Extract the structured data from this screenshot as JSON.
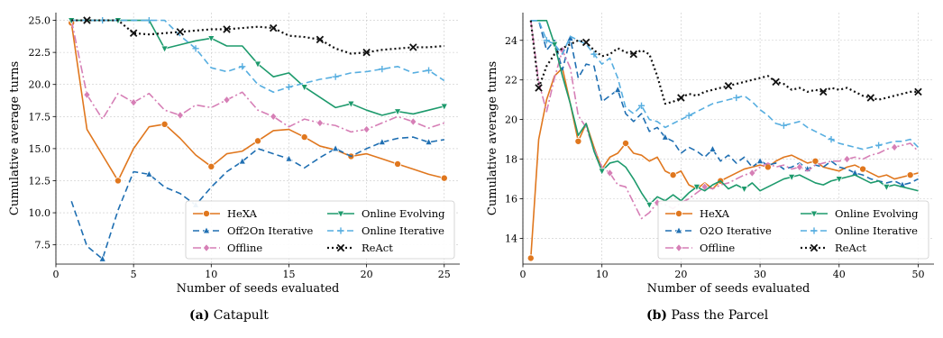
{
  "chart_data": [
    {
      "type": "line",
      "caption_label": "(a)",
      "caption_text": "Catapult",
      "xlabel": "Number of seeds evaluated",
      "ylabel": "Cumulative average turns",
      "xlim": [
        0,
        26
      ],
      "ylim": [
        6.0,
        25.6
      ],
      "xticks": [
        0,
        5,
        10,
        15,
        20,
        25
      ],
      "yticks": [
        7.5,
        10.0,
        12.5,
        15.0,
        17.5,
        20.0,
        22.5,
        25.0
      ],
      "ytick_decimals": 1,
      "grid": true,
      "legend_position": "lower-right",
      "series": [
        {
          "name": "HeXA",
          "color": "#e0771e",
          "dash": "",
          "marker": "circle",
          "marker_every": 3,
          "x": [
            1,
            2,
            3,
            4,
            5,
            6,
            7,
            8,
            9,
            10,
            11,
            12,
            13,
            14,
            15,
            16,
            17,
            18,
            19,
            20,
            21,
            22,
            23,
            24,
            25
          ],
          "y": [
            24.8,
            16.5,
            14.5,
            12.5,
            15.0,
            16.7,
            16.9,
            15.8,
            14.5,
            13.6,
            14.6,
            14.8,
            15.6,
            16.4,
            16.5,
            15.9,
            15.2,
            14.9,
            14.4,
            14.6,
            14.2,
            13.8,
            13.4,
            13.0,
            12.7
          ]
        },
        {
          "name": "Off2On Iterative",
          "color": "#1f6fb2",
          "dash": "7,4",
          "marker": "triangle-up",
          "marker_every": 3,
          "x": [
            1,
            2,
            3,
            4,
            5,
            6,
            7,
            8,
            9,
            10,
            11,
            12,
            13,
            14,
            15,
            16,
            17,
            18,
            19,
            20,
            21,
            22,
            23,
            24,
            25
          ],
          "y": [
            10.9,
            7.4,
            6.4,
            10.2,
            13.2,
            13.0,
            12.0,
            11.5,
            10.6,
            12.0,
            13.2,
            14.0,
            15.0,
            14.6,
            14.2,
            13.5,
            14.3,
            15.0,
            14.4,
            15.0,
            15.5,
            15.8,
            15.9,
            15.5,
            15.7
          ]
        },
        {
          "name": "Offline",
          "color": "#d67fb6",
          "dash": "9,3,2,3",
          "marker": "diamond",
          "marker_every": 3,
          "x": [
            1,
            2,
            3,
            4,
            5,
            6,
            7,
            8,
            9,
            10,
            11,
            12,
            13,
            14,
            15,
            16,
            17,
            18,
            19,
            20,
            21,
            22,
            23,
            24,
            25
          ],
          "y": [
            25.0,
            19.2,
            17.3,
            19.3,
            18.6,
            19.3,
            18.0,
            17.6,
            18.4,
            18.2,
            18.8,
            19.4,
            18.0,
            17.5,
            16.7,
            17.3,
            17.0,
            16.8,
            16.3,
            16.5,
            17.0,
            17.5,
            17.1,
            16.6,
            17.0
          ]
        },
        {
          "name": "Online Evolving",
          "color": "#1d9a6c",
          "dash": "",
          "marker": "triangle-down",
          "marker_every": 3,
          "x": [
            1,
            2,
            3,
            4,
            5,
            6,
            7,
            8,
            9,
            10,
            11,
            12,
            13,
            14,
            15,
            16,
            17,
            18,
            19,
            20,
            21,
            22,
            23,
            24,
            25
          ],
          "y": [
            25.0,
            25.0,
            25.0,
            25.0,
            25.0,
            25.0,
            22.8,
            23.1,
            23.4,
            23.6,
            23.0,
            23.0,
            21.6,
            20.6,
            20.9,
            19.8,
            19.0,
            18.2,
            18.5,
            18.0,
            17.6,
            17.9,
            17.7,
            18.0,
            18.3
          ]
        },
        {
          "name": "Online Iterative",
          "color": "#57aee0",
          "dash": "7,4",
          "marker": "plus",
          "marker_every": 3,
          "x": [
            1,
            2,
            3,
            4,
            5,
            6,
            7,
            8,
            9,
            10,
            11,
            12,
            13,
            14,
            15,
            16,
            17,
            18,
            19,
            20,
            21,
            22,
            23,
            24,
            25
          ],
          "y": [
            25.0,
            25.0,
            25.0,
            25.0,
            25.0,
            25.0,
            25.0,
            23.8,
            22.8,
            21.3,
            21.0,
            21.4,
            20.0,
            19.4,
            19.8,
            20.1,
            20.4,
            20.6,
            20.9,
            21.0,
            21.2,
            21.4,
            20.9,
            21.1,
            20.3
          ]
        },
        {
          "name": "ReAct",
          "color": "#111111",
          "dash": "2,3",
          "marker": "x",
          "marker_every": 3,
          "x": [
            1,
            2,
            3,
            4,
            5,
            6,
            7,
            8,
            9,
            10,
            11,
            12,
            13,
            14,
            15,
            16,
            17,
            18,
            19,
            20,
            21,
            22,
            23,
            24,
            25
          ],
          "y": [
            25.0,
            25.0,
            25.0,
            25.0,
            24.0,
            23.9,
            24.0,
            24.1,
            24.2,
            24.3,
            24.3,
            24.4,
            24.5,
            24.4,
            23.8,
            23.7,
            23.5,
            22.8,
            22.4,
            22.5,
            22.7,
            22.8,
            22.9,
            22.9,
            23.0
          ]
        }
      ],
      "legend": [
        {
          "name": "HeXA"
        },
        {
          "name": "Online Evolving"
        },
        {
          "name": "Off2On Iterative"
        },
        {
          "name": "Online Iterative"
        },
        {
          "name": "Offline"
        },
        {
          "name": "ReAct"
        }
      ]
    },
    {
      "type": "line",
      "caption_label": "(b)",
      "caption_text": "Pass the Parcel",
      "xlabel": "Number of seeds evaluated",
      "ylabel": "Cumulative average turns",
      "xlim": [
        0,
        52
      ],
      "ylim": [
        12.7,
        25.4
      ],
      "xticks": [
        0,
        10,
        20,
        30,
        40,
        50
      ],
      "yticks": [
        14,
        16,
        18,
        20,
        22,
        24
      ],
      "ytick_decimals": 0,
      "grid": true,
      "legend_position": "lower-right",
      "series": [
        {
          "name": "HeXA",
          "color": "#e0771e",
          "dash": "",
          "marker": "circle",
          "marker_every": 6,
          "x": [
            1,
            2,
            3,
            4,
            5,
            6,
            7,
            8,
            9,
            10,
            11,
            12,
            13,
            14,
            15,
            16,
            17,
            18,
            19,
            20,
            21,
            22,
            23,
            24,
            25,
            26,
            27,
            28,
            29,
            30,
            31,
            32,
            33,
            34,
            35,
            36,
            37,
            38,
            39,
            40,
            41,
            42,
            43,
            44,
            45,
            46,
            47,
            48,
            49,
            50
          ],
          "y": [
            13.0,
            19.0,
            21.0,
            22.2,
            22.6,
            20.8,
            18.9,
            19.8,
            18.6,
            17.5,
            18.1,
            18.3,
            18.8,
            18.3,
            18.2,
            17.9,
            18.1,
            17.4,
            17.2,
            17.4,
            16.7,
            16.5,
            16.8,
            16.5,
            16.9,
            17.1,
            17.3,
            17.5,
            17.6,
            17.7,
            17.6,
            17.9,
            18.1,
            18.2,
            18.0,
            17.8,
            17.9,
            17.6,
            17.5,
            17.4,
            17.6,
            17.7,
            17.5,
            17.3,
            17.1,
            17.2,
            17.0,
            17.1,
            17.2,
            17.3
          ]
        },
        {
          "name": "O2O Iterative",
          "color": "#1f6fb2",
          "dash": "7,4",
          "marker": "triangle-up",
          "marker_every": 6,
          "x": [
            1,
            2,
            3,
            4,
            5,
            6,
            7,
            8,
            9,
            10,
            11,
            12,
            13,
            14,
            15,
            16,
            17,
            18,
            19,
            20,
            21,
            22,
            23,
            24,
            25,
            26,
            27,
            28,
            29,
            30,
            31,
            32,
            33,
            34,
            35,
            36,
            37,
            38,
            39,
            40,
            41,
            42,
            43,
            44,
            45,
            46,
            47,
            48,
            49,
            50
          ],
          "y": [
            25.0,
            25.0,
            23.5,
            24.0,
            22.5,
            24.1,
            22.1,
            22.8,
            22.7,
            20.9,
            21.2,
            21.5,
            20.3,
            19.9,
            20.3,
            19.4,
            19.6,
            19.1,
            18.9,
            18.3,
            18.6,
            18.4,
            18.1,
            18.5,
            17.9,
            18.2,
            17.8,
            18.1,
            17.6,
            17.9,
            17.7,
            17.8,
            17.5,
            17.6,
            17.8,
            17.5,
            17.7,
            17.6,
            17.9,
            17.6,
            17.5,
            17.3,
            17.2,
            17.0,
            16.9,
            16.8,
            16.9,
            16.7,
            16.8,
            17.0
          ]
        },
        {
          "name": "Offline",
          "color": "#d67fb6",
          "dash": "9,3,2,3",
          "marker": "diamond",
          "marker_every": 6,
          "x": [
            1,
            2,
            3,
            4,
            5,
            6,
            7,
            8,
            9,
            10,
            11,
            12,
            13,
            14,
            15,
            16,
            17,
            18,
            19,
            20,
            21,
            22,
            23,
            24,
            25,
            26,
            27,
            28,
            29,
            30,
            31,
            32,
            33,
            34,
            35,
            36,
            37,
            38,
            39,
            40,
            41,
            42,
            43,
            44,
            45,
            46,
            47,
            48,
            49,
            50
          ],
          "y": [
            25.0,
            21.9,
            20.4,
            22.1,
            23.5,
            22.6,
            20.2,
            19.6,
            18.5,
            17.6,
            17.3,
            16.7,
            16.6,
            15.8,
            15.0,
            15.3,
            15.8,
            15.7,
            15.5,
            15.8,
            16.0,
            16.3,
            16.6,
            16.5,
            16.7,
            16.8,
            17.0,
            17.2,
            17.3,
            17.6,
            17.8,
            17.6,
            17.7,
            17.5,
            17.6,
            17.4,
            17.7,
            17.8,
            17.9,
            17.9,
            18.0,
            18.1,
            18.0,
            18.2,
            18.3,
            18.5,
            18.6,
            18.7,
            18.8,
            18.4
          ]
        },
        {
          "name": "Online Evolving",
          "color": "#1d9a6c",
          "dash": "",
          "marker": "triangle-down",
          "marker_every": 6,
          "x": [
            1,
            2,
            3,
            4,
            5,
            6,
            7,
            8,
            9,
            10,
            11,
            12,
            13,
            14,
            15,
            16,
            17,
            18,
            19,
            20,
            21,
            22,
            23,
            24,
            25,
            26,
            27,
            28,
            29,
            30,
            31,
            32,
            33,
            34,
            35,
            36,
            37,
            38,
            39,
            40,
            41,
            42,
            43,
            44,
            45,
            46,
            47,
            48,
            49,
            50
          ],
          "y": [
            25.0,
            25.0,
            25.0,
            23.8,
            22.2,
            20.8,
            19.2,
            19.8,
            18.4,
            17.4,
            17.8,
            17.9,
            17.6,
            17.0,
            16.3,
            15.7,
            16.1,
            15.9,
            16.2,
            15.9,
            16.3,
            16.6,
            16.4,
            16.7,
            16.9,
            16.5,
            16.7,
            16.5,
            16.8,
            16.4,
            16.6,
            16.8,
            17.0,
            17.1,
            17.2,
            17.0,
            16.8,
            16.7,
            16.9,
            17.0,
            17.1,
            17.2,
            17.0,
            16.8,
            16.9,
            16.6,
            16.7,
            16.6,
            16.5,
            16.4
          ]
        },
        {
          "name": "Online Iterative",
          "color": "#57aee0",
          "dash": "7,4",
          "marker": "plus",
          "marker_every": 6,
          "x": [
            1,
            2,
            3,
            4,
            5,
            6,
            7,
            8,
            9,
            10,
            11,
            12,
            13,
            14,
            15,
            16,
            17,
            18,
            19,
            20,
            21,
            22,
            23,
            24,
            25,
            26,
            27,
            28,
            29,
            30,
            31,
            32,
            33,
            34,
            35,
            36,
            37,
            38,
            39,
            40,
            41,
            42,
            43,
            44,
            45,
            46,
            47,
            48,
            49,
            50
          ],
          "y": [
            25.0,
            25.0,
            24.0,
            23.8,
            23.3,
            24.2,
            24.0,
            23.8,
            23.3,
            22.8,
            23.1,
            22.1,
            20.6,
            20.3,
            20.7,
            20.0,
            19.9,
            19.6,
            19.8,
            20.0,
            20.2,
            20.4,
            20.6,
            20.8,
            20.9,
            21.0,
            21.1,
            21.2,
            20.9,
            20.5,
            20.2,
            19.8,
            19.7,
            19.8,
            19.9,
            19.6,
            19.4,
            19.2,
            19.0,
            18.8,
            18.7,
            18.6,
            18.5,
            18.6,
            18.7,
            18.8,
            18.9,
            18.9,
            19.0,
            18.6
          ]
        },
        {
          "name": "ReAct",
          "color": "#111111",
          "dash": "2,3",
          "marker": "x",
          "marker_every": 6,
          "x": [
            1,
            2,
            3,
            4,
            5,
            6,
            7,
            8,
            9,
            10,
            11,
            12,
            13,
            14,
            15,
            16,
            17,
            18,
            19,
            20,
            21,
            22,
            23,
            24,
            25,
            26,
            27,
            28,
            29,
            30,
            31,
            32,
            33,
            34,
            35,
            36,
            37,
            38,
            39,
            40,
            41,
            42,
            43,
            44,
            45,
            46,
            47,
            48,
            49,
            50
          ],
          "y": [
            25.0,
            21.6,
            22.7,
            23.3,
            23.6,
            23.8,
            24.0,
            23.9,
            23.5,
            23.2,
            23.3,
            23.6,
            23.4,
            23.3,
            23.5,
            23.3,
            22.2,
            20.8,
            20.9,
            21.1,
            21.3,
            21.2,
            21.4,
            21.5,
            21.6,
            21.7,
            21.8,
            21.9,
            22.0,
            22.1,
            22.2,
            21.9,
            21.8,
            21.5,
            21.6,
            21.4,
            21.5,
            21.4,
            21.6,
            21.5,
            21.6,
            21.4,
            21.2,
            21.1,
            21.0,
            21.1,
            21.2,
            21.3,
            21.4,
            21.4
          ]
        }
      ],
      "legend": [
        {
          "name": "HeXA"
        },
        {
          "name": "Online Evolving"
        },
        {
          "name": "O2O Iterative"
        },
        {
          "name": "Online Iterative"
        },
        {
          "name": "Offline"
        },
        {
          "name": "ReAct"
        }
      ]
    }
  ]
}
